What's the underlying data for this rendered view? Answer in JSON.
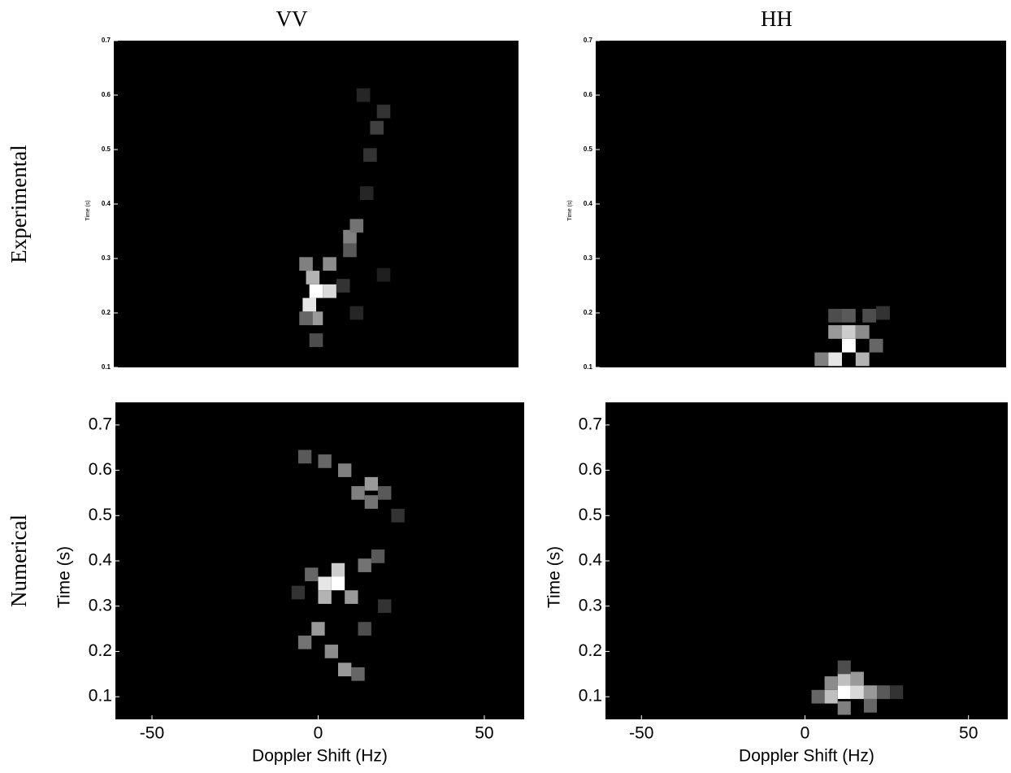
{
  "chart_data": [
    {
      "type": "heatmap",
      "title": "VV",
      "row_label": "Experimental",
      "ylabel": "Time (s)",
      "xlim": [
        -60,
        60
      ],
      "ylim": [
        0.1,
        0.7
      ],
      "yticks": [
        0.1,
        0.2,
        0.3,
        0.4,
        0.5,
        0.6,
        0.7
      ],
      "bin_width": 4,
      "bin_height": 0.025,
      "cells": {
        "x": [
          0,
          -2,
          4,
          -1,
          4,
          -3,
          0,
          -3,
          10,
          12,
          10,
          16,
          18,
          20,
          14,
          8,
          12,
          0,
          15,
          20
        ],
        "y": [
          0.24,
          0.215,
          0.24,
          0.265,
          0.29,
          0.29,
          0.19,
          0.19,
          0.34,
          0.36,
          0.315,
          0.49,
          0.54,
          0.57,
          0.6,
          0.25,
          0.2,
          0.15,
          0.42,
          0.27
        ],
        "values": [
          1.0,
          0.9,
          0.85,
          0.7,
          0.55,
          0.5,
          0.6,
          0.4,
          0.5,
          0.45,
          0.35,
          0.2,
          0.25,
          0.2,
          0.15,
          0.2,
          0.15,
          0.3,
          0.15,
          0.12
        ]
      }
    },
    {
      "type": "heatmap",
      "title": "HH",
      "ylabel": "Time (s)",
      "xlim": [
        -60,
        60
      ],
      "ylim": [
        0.1,
        0.7
      ],
      "yticks": [
        0.1,
        0.2,
        0.3,
        0.4,
        0.5,
        0.6,
        0.7
      ],
      "bin_width": 4,
      "bin_height": 0.025,
      "cells": {
        "x": [
          14,
          10,
          18,
          14,
          18,
          10,
          14,
          10,
          20,
          22,
          6,
          24
        ],
        "y": [
          0.14,
          0.115,
          0.115,
          0.165,
          0.165,
          0.165,
          0.195,
          0.195,
          0.195,
          0.14,
          0.115,
          0.2
        ],
        "values": [
          1.0,
          0.9,
          0.7,
          0.8,
          0.55,
          0.6,
          0.35,
          0.3,
          0.3,
          0.4,
          0.5,
          0.2
        ]
      }
    },
    {
      "type": "heatmap",
      "row_label": "Numerical",
      "xlabel": "Doppler Shift (Hz)",
      "ylabel": "Time (s)",
      "xlim": [
        -61,
        62
      ],
      "ylim": [
        0.05,
        0.75
      ],
      "xticks": [
        -50,
        0,
        50
      ],
      "yticks": [
        0.1,
        0.2,
        0.3,
        0.4,
        0.5,
        0.6,
        0.7
      ],
      "bin_width": 4,
      "bin_height": 0.03,
      "cells": {
        "x": [
          6,
          2,
          6,
          2,
          10,
          14,
          18,
          -2,
          0,
          4,
          8,
          -4,
          12,
          16,
          12,
          16,
          8,
          2,
          -4,
          20,
          14,
          -6,
          24,
          20
        ],
        "y": [
          0.35,
          0.35,
          0.38,
          0.32,
          0.32,
          0.39,
          0.41,
          0.37,
          0.25,
          0.2,
          0.16,
          0.22,
          0.15,
          0.57,
          0.55,
          0.53,
          0.6,
          0.62,
          0.63,
          0.55,
          0.25,
          0.33,
          0.5,
          0.3
        ],
        "values": [
          1.0,
          0.9,
          0.8,
          0.7,
          0.6,
          0.45,
          0.35,
          0.4,
          0.6,
          0.55,
          0.6,
          0.45,
          0.4,
          0.6,
          0.5,
          0.45,
          0.5,
          0.4,
          0.35,
          0.35,
          0.3,
          0.2,
          0.2,
          0.2
        ]
      }
    },
    {
      "type": "heatmap",
      "xlabel": "Doppler Shift (Hz)",
      "ylabel": "Time (s)",
      "xlim": [
        -61,
        62
      ],
      "ylim": [
        0.05,
        0.75
      ],
      "xticks": [
        -50,
        0,
        50
      ],
      "yticks": [
        0.1,
        0.2,
        0.3,
        0.4,
        0.5,
        0.6,
        0.7
      ],
      "bin_width": 4,
      "bin_height": 0.03,
      "cells": {
        "x": [
          12,
          16,
          8,
          12,
          20,
          8,
          16,
          4,
          24,
          12,
          20,
          12,
          28
        ],
        "y": [
          0.11,
          0.11,
          0.1,
          0.14,
          0.11,
          0.13,
          0.14,
          0.1,
          0.11,
          0.075,
          0.08,
          0.165,
          0.11
        ],
        "values": [
          1.0,
          0.85,
          0.75,
          0.75,
          0.6,
          0.55,
          0.6,
          0.4,
          0.35,
          0.5,
          0.4,
          0.3,
          0.2
        ]
      }
    }
  ]
}
